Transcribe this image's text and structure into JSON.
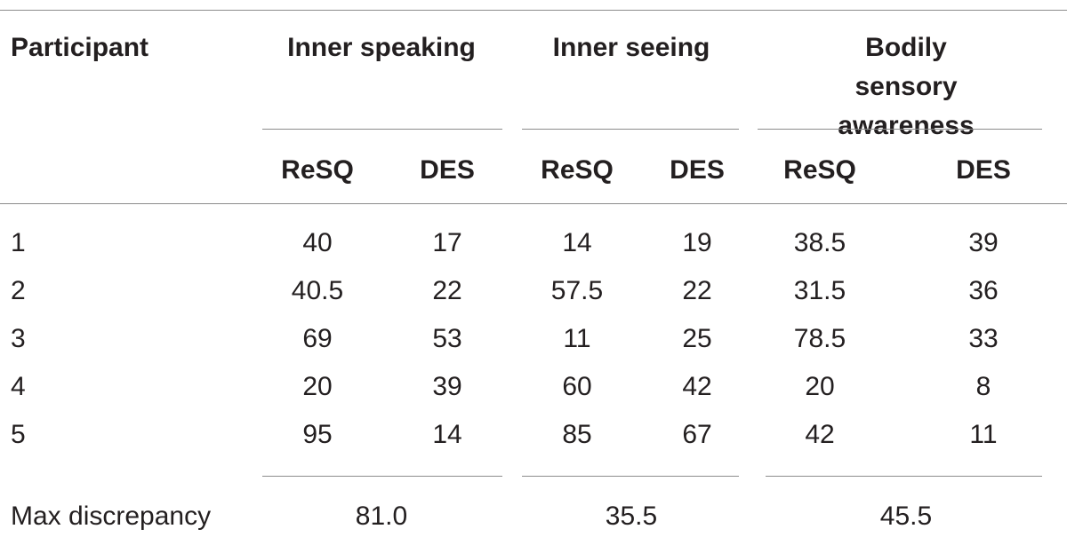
{
  "header": {
    "participant_label": "Participant",
    "groups": [
      {
        "label": "Inner speaking"
      },
      {
        "label": "Inner seeing"
      },
      {
        "label": "Bodily sensory awareness",
        "line1": "Bodily sensory",
        "line2": "awareness"
      }
    ],
    "subheaders": [
      "ReSQ",
      "DES",
      "ReSQ",
      "DES",
      "ReSQ",
      "DES"
    ]
  },
  "rows": [
    {
      "participant": "1",
      "values": [
        "40",
        "17",
        "14",
        "19",
        "38.5",
        "39"
      ]
    },
    {
      "participant": "2",
      "values": [
        "40.5",
        "22",
        "57.5",
        "22",
        "31.5",
        "36"
      ]
    },
    {
      "participant": "3",
      "values": [
        "69",
        "53",
        "11",
        "25",
        "78.5",
        "33"
      ]
    },
    {
      "participant": "4",
      "values": [
        "20",
        "39",
        "60",
        "42",
        "20",
        "8"
      ]
    },
    {
      "participant": "5",
      "values": [
        "95",
        "14",
        "85",
        "67",
        "42",
        "11"
      ]
    }
  ],
  "footer": {
    "label": "Max discrepancy",
    "values": [
      "81.0",
      "35.5",
      "45.5"
    ]
  }
}
